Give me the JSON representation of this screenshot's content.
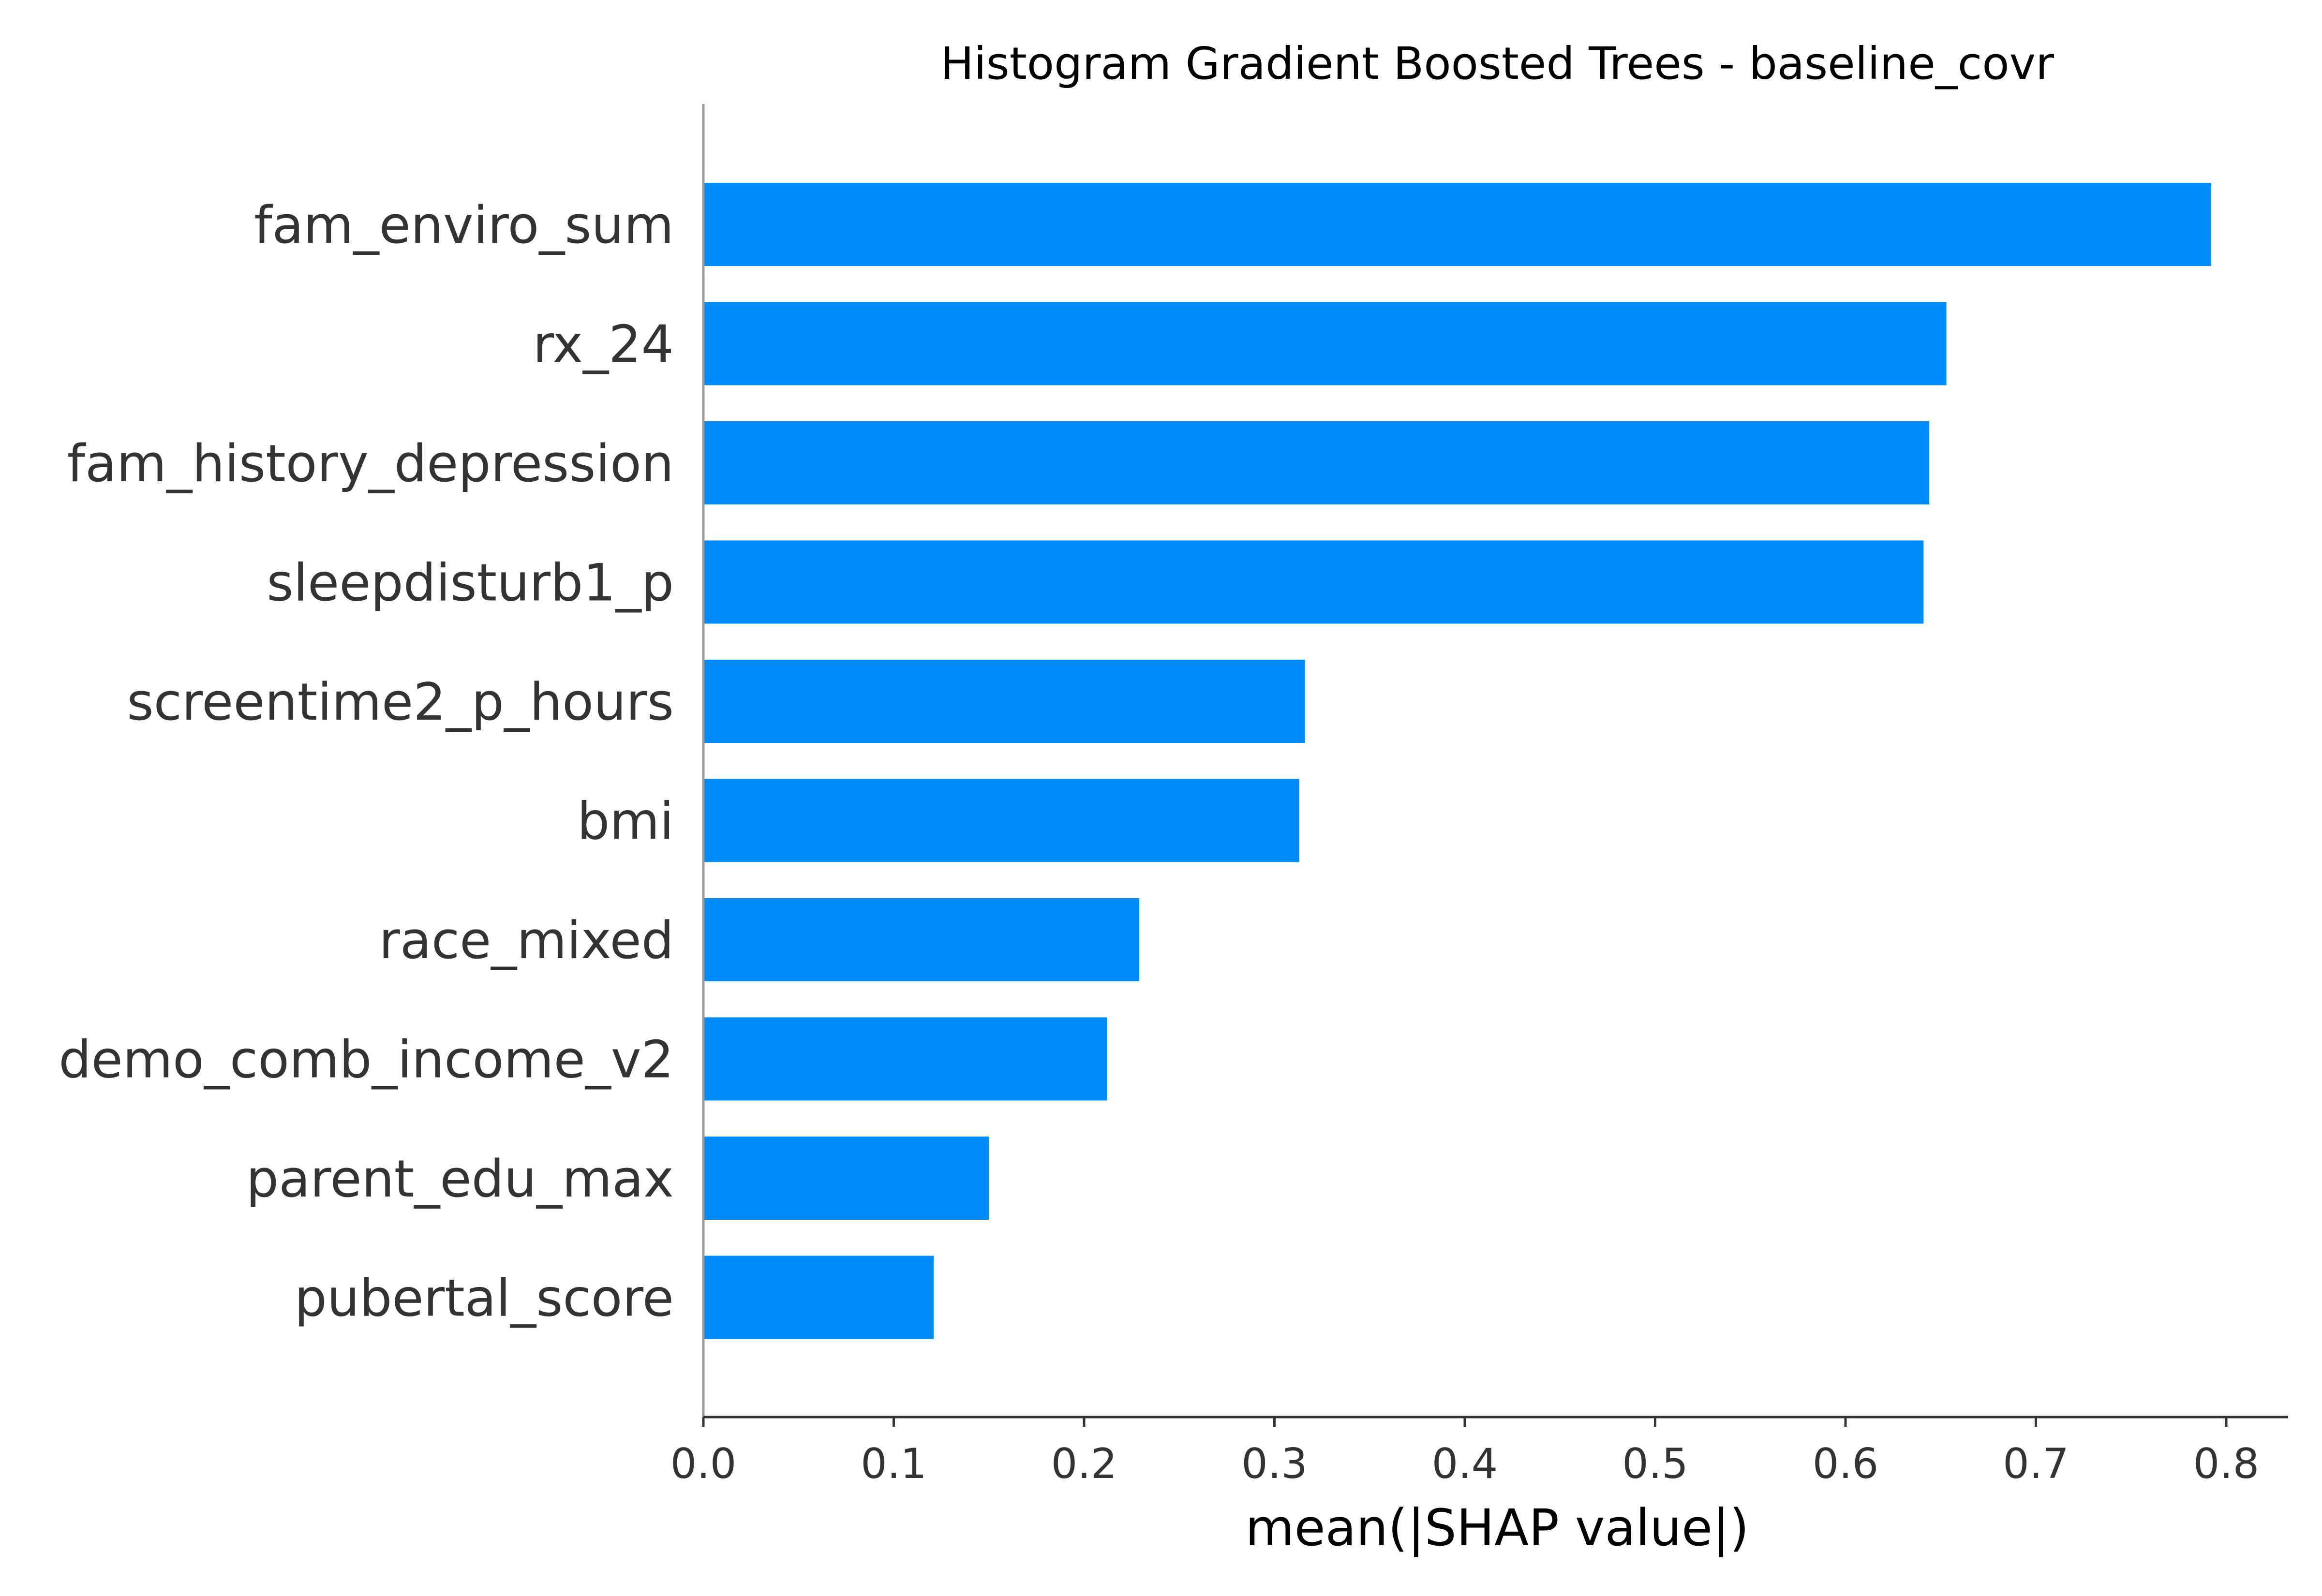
{
  "chart_data": {
    "type": "bar",
    "orientation": "horizontal",
    "title": "Histogram Gradient Boosted Trees - baseline_covr",
    "xlabel": "mean(|SHAP value|)",
    "ylabel": "",
    "categories": [
      "fam_enviro_sum",
      "rx_24",
      "fam_history_depression",
      "sleepdisturb1_p",
      "screentime2_p_hours",
      "bmi",
      "race_mixed",
      "demo_comb_income_v2",
      "parent_edu_max",
      "pubertal_score"
    ],
    "values": [
      0.792,
      0.653,
      0.644,
      0.641,
      0.316,
      0.313,
      0.229,
      0.212,
      0.15,
      0.121
    ],
    "xlim": [
      0.0,
      0.83
    ],
    "xticks": [
      0.0,
      0.1,
      0.2,
      0.3,
      0.4,
      0.5,
      0.6,
      0.7,
      0.8
    ],
    "xtick_labels": [
      "0.0",
      "0.1",
      "0.2",
      "0.3",
      "0.4",
      "0.5",
      "0.6",
      "0.7",
      "0.8"
    ],
    "bar_color": "#008bfb",
    "grid": false,
    "legend": "none"
  }
}
